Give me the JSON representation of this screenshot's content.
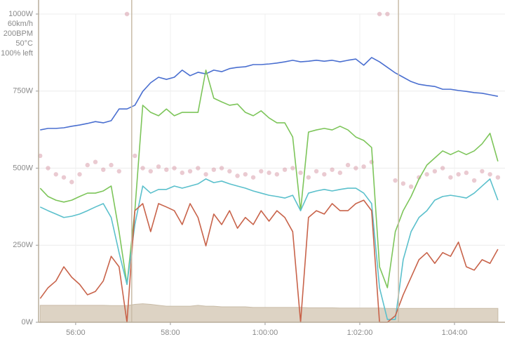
{
  "chart_data": {
    "type": "line",
    "xlim": [
      3313,
      3904
    ],
    "ylim": [
      0,
      1000
    ],
    "xticks": [
      {
        "value": 3360,
        "label": "56:00"
      },
      {
        "value": 3480,
        "label": "58:00"
      },
      {
        "value": 3600,
        "label": "1:00:00"
      },
      {
        "value": 3720,
        "label": "1:02:00"
      },
      {
        "value": 3840,
        "label": "1:04:00"
      }
    ],
    "yticks": [
      {
        "value": 0,
        "label": "0W"
      },
      {
        "value": 250,
        "label": "250W"
      },
      {
        "value": 500,
        "label": "500W"
      },
      {
        "value": 750,
        "label": "750W"
      },
      {
        "value": 1000,
        "label": "1000W"
      }
    ],
    "y_top_labels": [
      "60km/h",
      "200BPM",
      "50°C",
      "100% left"
    ],
    "grid": true,
    "markers": [
      3431,
      3769
    ],
    "x": [
      3315,
      3325,
      3335,
      3345,
      3355,
      3365,
      3375,
      3385,
      3395,
      3405,
      3415,
      3425,
      3435,
      3445,
      3455,
      3465,
      3475,
      3485,
      3495,
      3505,
      3515,
      3525,
      3535,
      3545,
      3555,
      3565,
      3575,
      3585,
      3595,
      3605,
      3615,
      3625,
      3635,
      3645,
      3655,
      3665,
      3675,
      3685,
      3695,
      3705,
      3715,
      3725,
      3735,
      3745,
      3755,
      3765,
      3775,
      3785,
      3795,
      3805,
      3815,
      3825,
      3835,
      3845,
      3855,
      3865,
      3875,
      3885,
      3895
    ],
    "series": [
      {
        "style": "area",
        "color": "#ddd3c4",
        "values": [
          55,
          55,
          55,
          55,
          55,
          55,
          55,
          55,
          55,
          54,
          54,
          54,
          58,
          60,
          58,
          55,
          52,
          52,
          52,
          52,
          55,
          52,
          52,
          50,
          50,
          50,
          50,
          48,
          48,
          48,
          48,
          48,
          48,
          48,
          47,
          47,
          47,
          47,
          46,
          46,
          46,
          46,
          46,
          46,
          45,
          45,
          45,
          45,
          45,
          45,
          45,
          45,
          45,
          45,
          45,
          45,
          45,
          45,
          45
        ]
      },
      {
        "style": "dots",
        "color": "#d08a9a",
        "values": [
          540,
          500,
          480,
          470,
          455,
          480,
          510,
          520,
          495,
          510,
          490,
          1000,
          540,
          500,
          490,
          505,
          495,
          500,
          485,
          490,
          500,
          480,
          495,
          500,
          490,
          475,
          480,
          470,
          490,
          485,
          480,
          495,
          500,
          485,
          470,
          490,
          480,
          495,
          485,
          510,
          500,
          505,
          520,
          1000,
          1000,
          460,
          450,
          440,
          470,
          480,
          490,
          500,
          470,
          480,
          485,
          460,
          490,
          480,
          470
        ]
      },
      {
        "style": "line",
        "color": "#4a6fd0",
        "values": [
          624,
          629,
          629,
          631,
          636,
          640,
          645,
          651,
          647,
          654,
          692,
          692,
          704,
          749,
          777,
          795,
          788,
          795,
          818,
          800,
          811,
          806,
          818,
          813,
          823,
          827,
          829,
          836,
          836,
          838,
          841,
          845,
          850,
          845,
          847,
          850,
          847,
          850,
          845,
          850,
          854,
          834,
          859,
          845,
          827,
          809,
          795,
          781,
          772,
          768,
          765,
          756,
          756,
          752,
          749,
          745,
          743,
          738,
          733
        ]
      },
      {
        "style": "line",
        "color": "#7dc55a",
        "values": [
          435,
          408,
          396,
          390,
          396,
          408,
          419,
          419,
          426,
          442,
          294,
          123,
          362,
          704,
          681,
          670,
          692,
          670,
          681,
          681,
          681,
          818,
          727,
          715,
          704,
          708,
          681,
          670,
          686,
          663,
          647,
          647,
          601,
          362,
          617,
          624,
          629,
          624,
          636,
          624,
          601,
          590,
          567,
          180,
          112,
          294,
          362,
          408,
          465,
          510,
          533,
          556,
          544,
          556,
          544,
          556,
          579,
          613,
          522
        ]
      },
      {
        "style": "line",
        "color": "#5bc0cc",
        "values": [
          374,
          362,
          351,
          340,
          344,
          351,
          362,
          374,
          385,
          340,
          226,
          123,
          317,
          442,
          419,
          431,
          431,
          442,
          435,
          442,
          449,
          465,
          453,
          458,
          449,
          442,
          435,
          426,
          419,
          412,
          408,
          403,
          412,
          362,
          419,
          426,
          431,
          426,
          431,
          435,
          435,
          419,
          385,
          112,
          9,
          9,
          203,
          294,
          340,
          362,
          396,
          408,
          412,
          408,
          403,
          419,
          442,
          465,
          396
        ]
      },
      {
        "style": "line",
        "color": "#c8634a",
        "values": [
          77,
          112,
          134,
          180,
          146,
          123,
          89,
          100,
          134,
          214,
          180,
          0,
          362,
          385,
          294,
          385,
          374,
          362,
          317,
          385,
          340,
          248,
          351,
          317,
          362,
          305,
          340,
          317,
          362,
          328,
          362,
          340,
          294,
          0,
          340,
          362,
          351,
          385,
          362,
          362,
          385,
          396,
          362,
          0,
          0,
          21,
          89,
          146,
          203,
          226,
          191,
          226,
          214,
          260,
          180,
          169,
          203,
          191,
          237
        ]
      }
    ]
  }
}
